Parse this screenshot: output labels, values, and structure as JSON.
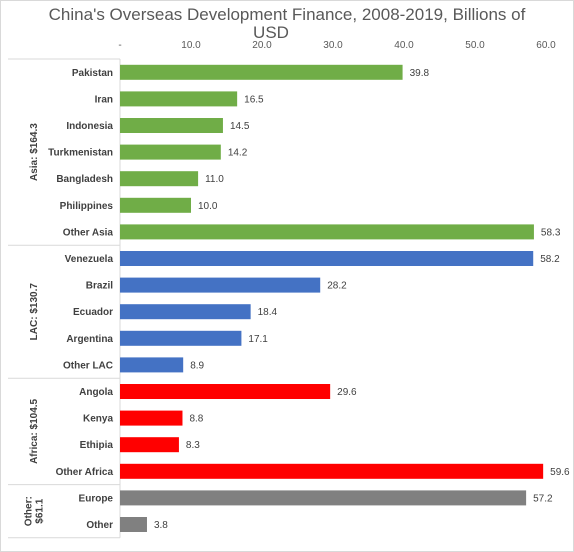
{
  "chart_data": {
    "type": "bar",
    "orientation": "horizontal",
    "title_lines": [
      "China's Overseas Development Finance, 2008-2019, Billions of",
      "USD"
    ],
    "xlabel": "",
    "ylabel": "",
    "xlim": [
      0,
      60
    ],
    "axis_position": "top",
    "tick_labels": [
      "-",
      "10.0",
      "20.0",
      "30.0",
      "40.0",
      "50.0",
      "60.0"
    ],
    "grid": false,
    "legend": "none",
    "groups": [
      {
        "label_lines": [
          "Asia: $164.3"
        ],
        "color": "#70ad47",
        "count": 7
      },
      {
        "label_lines": [
          "LAC: $130.7"
        ],
        "color": "#4472c4",
        "count": 5
      },
      {
        "label_lines": [
          "Africa: $104.5"
        ],
        "color": "#ff0000",
        "count": 4
      },
      {
        "label_lines": [
          "Other:",
          "$61.1"
        ],
        "color": "#808080",
        "count": 2
      }
    ],
    "categories": [
      "Pakistan",
      "Iran",
      "Indonesia",
      "Turkmenistan",
      "Bangladesh",
      "Philippines",
      "Other Asia",
      "Venezuela",
      "Brazil",
      "Ecuador",
      "Argentina",
      "Other LAC",
      "Angola",
      "Kenya",
      "Ethipia",
      "Other Africa",
      "Europe",
      "Other"
    ],
    "values": [
      39.8,
      16.5,
      14.5,
      14.2,
      11.0,
      10.0,
      58.3,
      58.2,
      28.2,
      18.4,
      17.1,
      8.9,
      29.6,
      8.8,
      8.3,
      59.6,
      57.2,
      3.8
    ],
    "value_labels": [
      "39.8",
      "16.5",
      "14.5",
      "14.2",
      "11.0",
      "10.0",
      "58.3",
      "58.2",
      "28.2",
      "18.4",
      "17.1",
      "8.9",
      "29.6",
      "8.8",
      "8.3",
      "59.6",
      "57.2",
      "3.8"
    ]
  }
}
